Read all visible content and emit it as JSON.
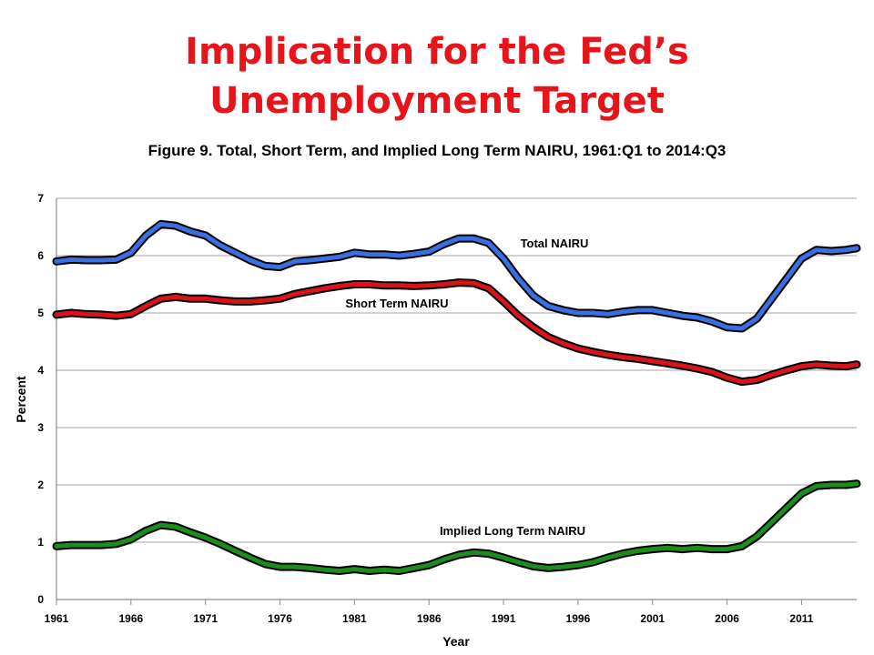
{
  "slide": {
    "title_line1": "Implication for the Fed’s",
    "title_line2": "Unemployment Target"
  },
  "colors": {
    "title": "#e8141b",
    "total": "#3a6fe0",
    "short": "#d8141b",
    "long": "#1c8c1c",
    "outline": "#000000",
    "grid": "#a6a6a6"
  },
  "chart_data": {
    "type": "line",
    "title": "Figure 9. Total, Short Term, and Implied Long Term NAIRU, 1961:Q1 to 2014:Q3",
    "xlabel": "Year",
    "ylabel": "Percent",
    "xlim": [
      1961,
      2014.7
    ],
    "ylim": [
      0,
      7
    ],
    "grid": "horizontal",
    "x_ticks": [
      "1961",
      "1966",
      "1971",
      "1976",
      "1981",
      "1986",
      "1991",
      "1996",
      "2001",
      "2006",
      "2011"
    ],
    "y_ticks": [
      "0",
      "1",
      "2",
      "3",
      "4",
      "5",
      "6",
      "7"
    ],
    "series": [
      {
        "name": "Total NAIRU",
        "color": "#3a6fe0",
        "points": [
          [
            1961,
            5.9
          ],
          [
            1962,
            5.93
          ],
          [
            1963,
            5.92
          ],
          [
            1964,
            5.92
          ],
          [
            1965,
            5.93
          ],
          [
            1966,
            6.05
          ],
          [
            1967,
            6.35
          ],
          [
            1968,
            6.55
          ],
          [
            1969,
            6.52
          ],
          [
            1970,
            6.42
          ],
          [
            1971,
            6.35
          ],
          [
            1972,
            6.18
          ],
          [
            1973,
            6.05
          ],
          [
            1974,
            5.92
          ],
          [
            1975,
            5.82
          ],
          [
            1976,
            5.8
          ],
          [
            1977,
            5.9
          ],
          [
            1978,
            5.92
          ],
          [
            1979,
            5.95
          ],
          [
            1980,
            5.98
          ],
          [
            1981,
            6.05
          ],
          [
            1982,
            6.02
          ],
          [
            1983,
            6.02
          ],
          [
            1984,
            6.0
          ],
          [
            1985,
            6.03
          ],
          [
            1986,
            6.07
          ],
          [
            1987,
            6.2
          ],
          [
            1988,
            6.3
          ],
          [
            1989,
            6.3
          ],
          [
            1990,
            6.22
          ],
          [
            1991,
            5.95
          ],
          [
            1992,
            5.6
          ],
          [
            1993,
            5.3
          ],
          [
            1994,
            5.12
          ],
          [
            1995,
            5.05
          ],
          [
            1996,
            5.0
          ],
          [
            1997,
            5.0
          ],
          [
            1998,
            4.98
          ],
          [
            1999,
            5.02
          ],
          [
            2000,
            5.05
          ],
          [
            2001,
            5.05
          ],
          [
            2002,
            5.0
          ],
          [
            2003,
            4.95
          ],
          [
            2004,
            4.92
          ],
          [
            2005,
            4.85
          ],
          [
            2006,
            4.75
          ],
          [
            2007,
            4.73
          ],
          [
            2008,
            4.9
          ],
          [
            2009,
            5.25
          ],
          [
            2010,
            5.6
          ],
          [
            2011,
            5.95
          ],
          [
            2012,
            6.1
          ],
          [
            2013,
            6.08
          ],
          [
            2014,
            6.1
          ],
          [
            2014.7,
            6.13
          ]
        ]
      },
      {
        "name": "Short Term NAIRU",
        "color": "#d8141b",
        "points": [
          [
            1961,
            4.97
          ],
          [
            1962,
            5.0
          ],
          [
            1963,
            4.98
          ],
          [
            1964,
            4.97
          ],
          [
            1965,
            4.95
          ],
          [
            1966,
            4.98
          ],
          [
            1967,
            5.12
          ],
          [
            1968,
            5.25
          ],
          [
            1969,
            5.28
          ],
          [
            1970,
            5.25
          ],
          [
            1971,
            5.25
          ],
          [
            1972,
            5.22
          ],
          [
            1973,
            5.2
          ],
          [
            1974,
            5.2
          ],
          [
            1975,
            5.22
          ],
          [
            1976,
            5.25
          ],
          [
            1977,
            5.33
          ],
          [
            1978,
            5.38
          ],
          [
            1979,
            5.43
          ],
          [
            1980,
            5.47
          ],
          [
            1981,
            5.5
          ],
          [
            1982,
            5.5
          ],
          [
            1983,
            5.48
          ],
          [
            1984,
            5.48
          ],
          [
            1985,
            5.47
          ],
          [
            1986,
            5.48
          ],
          [
            1987,
            5.5
          ],
          [
            1988,
            5.53
          ],
          [
            1989,
            5.52
          ],
          [
            1990,
            5.43
          ],
          [
            1991,
            5.2
          ],
          [
            1992,
            4.95
          ],
          [
            1993,
            4.75
          ],
          [
            1994,
            4.58
          ],
          [
            1995,
            4.47
          ],
          [
            1996,
            4.38
          ],
          [
            1997,
            4.32
          ],
          [
            1998,
            4.27
          ],
          [
            1999,
            4.23
          ],
          [
            2000,
            4.2
          ],
          [
            2001,
            4.16
          ],
          [
            2002,
            4.12
          ],
          [
            2003,
            4.08
          ],
          [
            2004,
            4.03
          ],
          [
            2005,
            3.97
          ],
          [
            2006,
            3.87
          ],
          [
            2007,
            3.8
          ],
          [
            2008,
            3.83
          ],
          [
            2009,
            3.92
          ],
          [
            2010,
            4.0
          ],
          [
            2011,
            4.07
          ],
          [
            2012,
            4.1
          ],
          [
            2013,
            4.08
          ],
          [
            2014,
            4.07
          ],
          [
            2014.7,
            4.1
          ]
        ]
      },
      {
        "name": "Implied Long Term NAIRU",
        "color": "#1c8c1c",
        "points": [
          [
            1961,
            0.93
          ],
          [
            1962,
            0.95
          ],
          [
            1963,
            0.95
          ],
          [
            1964,
            0.95
          ],
          [
            1965,
            0.97
          ],
          [
            1966,
            1.05
          ],
          [
            1967,
            1.2
          ],
          [
            1968,
            1.3
          ],
          [
            1969,
            1.27
          ],
          [
            1970,
            1.17
          ],
          [
            1971,
            1.08
          ],
          [
            1972,
            0.97
          ],
          [
            1973,
            0.85
          ],
          [
            1974,
            0.73
          ],
          [
            1975,
            0.62
          ],
          [
            1976,
            0.57
          ],
          [
            1977,
            0.57
          ],
          [
            1978,
            0.55
          ],
          [
            1979,
            0.52
          ],
          [
            1980,
            0.5
          ],
          [
            1981,
            0.53
          ],
          [
            1982,
            0.5
          ],
          [
            1983,
            0.52
          ],
          [
            1984,
            0.5
          ],
          [
            1985,
            0.55
          ],
          [
            1986,
            0.6
          ],
          [
            1987,
            0.7
          ],
          [
            1988,
            0.78
          ],
          [
            1989,
            0.82
          ],
          [
            1990,
            0.8
          ],
          [
            1991,
            0.73
          ],
          [
            1992,
            0.65
          ],
          [
            1993,
            0.58
          ],
          [
            1994,
            0.55
          ],
          [
            1995,
            0.57
          ],
          [
            1996,
            0.6
          ],
          [
            1997,
            0.65
          ],
          [
            1998,
            0.73
          ],
          [
            1999,
            0.8
          ],
          [
            2000,
            0.85
          ],
          [
            2001,
            0.88
          ],
          [
            2002,
            0.9
          ],
          [
            2003,
            0.88
          ],
          [
            2004,
            0.9
          ],
          [
            2005,
            0.88
          ],
          [
            2006,
            0.88
          ],
          [
            2007,
            0.93
          ],
          [
            2008,
            1.1
          ],
          [
            2009,
            1.35
          ],
          [
            2010,
            1.6
          ],
          [
            2011,
            1.85
          ],
          [
            2012,
            1.98
          ],
          [
            2013,
            2.0
          ],
          [
            2014,
            2.0
          ],
          [
            2014.7,
            2.02
          ]
        ]
      }
    ],
    "annotations": [
      {
        "text": "Total NAIRU",
        "series": 0
      },
      {
        "text": "Short Term NAIRU",
        "series": 1
      },
      {
        "text": "Implied Long Term NAIRU",
        "series": 2
      }
    ]
  }
}
